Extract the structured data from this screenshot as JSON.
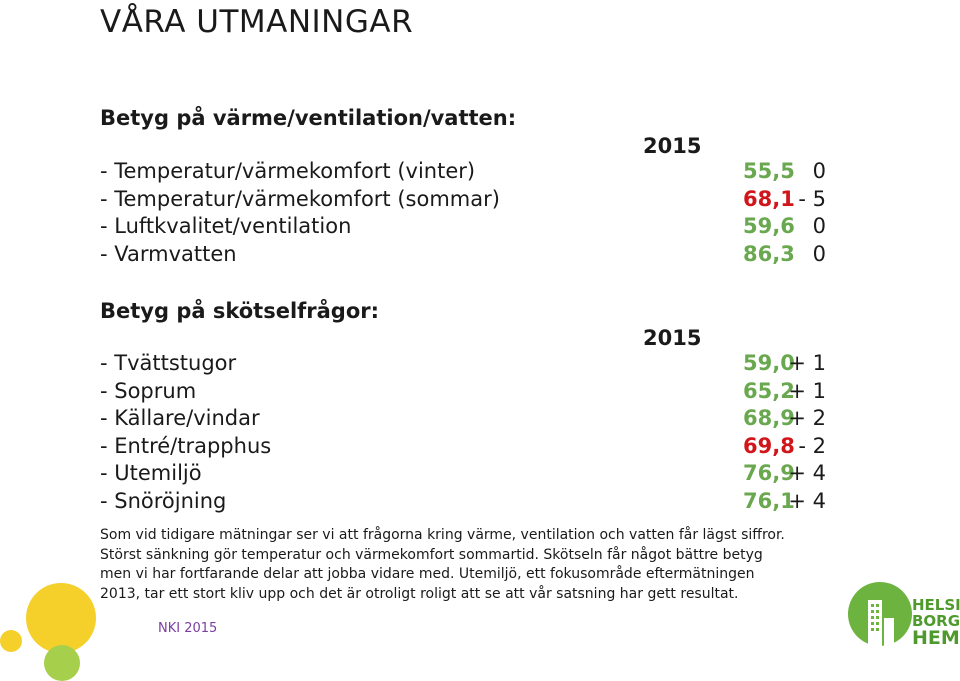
{
  "title": "VÅRA UTMANINGAR",
  "section1": {
    "heading": "Betyg på värme/ventilation/vatten:",
    "year": "2015",
    "rows": [
      {
        "label": "- Temperatur/värmekomfort (vinter)",
        "score": "55,5",
        "delta": "0",
        "color": "#6aa84f"
      },
      {
        "label": "- Temperatur/värmekomfort (sommar)",
        "score": "68,1",
        "delta": "- 5",
        "color": "#d0161b"
      },
      {
        "label": "- Luftkvalitet/ventilation",
        "score": "59,6",
        "delta": "0",
        "color": "#6aa84f"
      },
      {
        "label": "- Varmvatten",
        "score": "86,3",
        "delta": "0",
        "color": "#6aa84f"
      }
    ]
  },
  "section2": {
    "heading": "Betyg på skötselfrågor:",
    "year": "2015",
    "rows": [
      {
        "label": "- Tvättstugor",
        "score": "59,0",
        "delta": "+ 1",
        "color": "#6aa84f"
      },
      {
        "label": "- Soprum",
        "score": "65,2",
        "delta": "+ 1",
        "color": "#6aa84f"
      },
      {
        "label": "- Källare/vindar",
        "score": "68,9",
        "delta": "+ 2",
        "color": "#6aa84f"
      },
      {
        "label": "- Entré/trapphus",
        "score": "69,8",
        "delta": "- 2",
        "color": "#d0161b"
      },
      {
        "label": "- Utemiljö",
        "score": "76,9",
        "delta": "+ 4",
        "color": "#6aa84f"
      },
      {
        "label": "- Snöröjning",
        "score": "76,1",
        "delta": "+ 4",
        "color": "#6aa84f"
      }
    ]
  },
  "body": {
    "lines": [
      "Som vid tidigare mätningar ser vi att frågorna kring värme, ventilation och vatten får lägst siffror.",
      "Störst sänkning gör temperatur och värmekomfort sommartid. Skötseln får något bättre betyg",
      "men vi har fortfarande delar att jobba vidare med. Utemiljö, ett fokusområde eftermätningen",
      "2013, tar ett stort kliv upp och det är otroligt roligt att se att vår satsning har gett resultat."
    ]
  },
  "footer": {
    "label": "NKI 2015"
  },
  "logo": {
    "line1": "HELSING",
    "line2": "BORGS",
    "line3": "HEM",
    "color": "#4f9a2c"
  }
}
